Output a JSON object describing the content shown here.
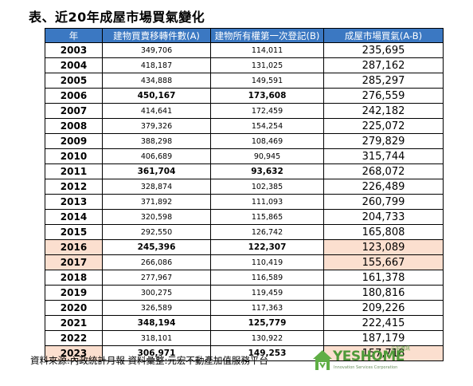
{
  "title": "表、近20年成屋市場買氣變化",
  "table": {
    "headers": [
      "年",
      "建物買賣移轉件數(A)",
      "建物所有權第一次登記(B)",
      "成屋市場買氣(A-B)"
    ],
    "rows": [
      {
        "year": "2003",
        "a": "349,706",
        "b": "114,011",
        "c": "235,695",
        "bold": false,
        "highlight": false
      },
      {
        "year": "2004",
        "a": "418,187",
        "b": "131,025",
        "c": "287,162",
        "bold": false,
        "highlight": false
      },
      {
        "year": "2005",
        "a": "434,888",
        "b": "149,591",
        "c": "285,297",
        "bold": false,
        "highlight": false
      },
      {
        "year": "2006",
        "a": "450,167",
        "b": "173,608",
        "c": "276,559",
        "bold": true,
        "highlight": false
      },
      {
        "year": "2007",
        "a": "414,641",
        "b": "172,459",
        "c": "242,182",
        "bold": false,
        "highlight": false
      },
      {
        "year": "2008",
        "a": "379,326",
        "b": "154,254",
        "c": "225,072",
        "bold": false,
        "highlight": false
      },
      {
        "year": "2009",
        "a": "388,298",
        "b": "108,469",
        "c": "279,829",
        "bold": false,
        "highlight": false
      },
      {
        "year": "2010",
        "a": "406,689",
        "b": "90,945",
        "c": "315,744",
        "bold": false,
        "highlight": false
      },
      {
        "year": "2011",
        "a": "361,704",
        "b": "93,632",
        "c": "268,072",
        "bold": true,
        "highlight": false
      },
      {
        "year": "2012",
        "a": "328,874",
        "b": "102,385",
        "c": "226,489",
        "bold": false,
        "highlight": false
      },
      {
        "year": "2013",
        "a": "371,892",
        "b": "111,093",
        "c": "260,799",
        "bold": false,
        "highlight": false
      },
      {
        "year": "2014",
        "a": "320,598",
        "b": "115,865",
        "c": "204,733",
        "bold": false,
        "highlight": false
      },
      {
        "year": "2015",
        "a": "292,550",
        "b": "126,742",
        "c": "165,808",
        "bold": false,
        "highlight": false
      },
      {
        "year": "2016",
        "a": "245,396",
        "b": "122,307",
        "c": "123,089",
        "bold": true,
        "highlight": true
      },
      {
        "year": "2017",
        "a": "266,086",
        "b": "110,419",
        "c": "155,667",
        "bold": false,
        "highlight": true
      },
      {
        "year": "2018",
        "a": "277,967",
        "b": "116,589",
        "c": "161,378",
        "bold": false,
        "highlight": false
      },
      {
        "year": "2019",
        "a": "300,275",
        "b": "119,459",
        "c": "180,816",
        "bold": false,
        "highlight": false
      },
      {
        "year": "2020",
        "a": "326,589",
        "b": "117,363",
        "c": "209,226",
        "bold": false,
        "highlight": false
      },
      {
        "year": "2021",
        "a": "348,194",
        "b": "125,779",
        "c": "222,415",
        "bold": true,
        "highlight": false
      },
      {
        "year": "2022",
        "a": "318,101",
        "b": "130,922",
        "c": "187,179",
        "bold": false,
        "highlight": false
      },
      {
        "year": "2023",
        "a": "306,971",
        "b": "149,253",
        "c": "157,718",
        "bold": true,
        "highlight": true
      }
    ]
  },
  "footer": {
    "source": "資料來源:內政統計月報  資料彙整:元宏不動產加值服務平台"
  },
  "logo": {
    "text": "YESHOME",
    "tag": "元宏資訊",
    "subtitle": "Innovation Services Corporation",
    "color": "#4f9a3a"
  },
  "colors": {
    "header_bg": "#3b78c2",
    "highlight_bg": "#fbdfcf"
  }
}
